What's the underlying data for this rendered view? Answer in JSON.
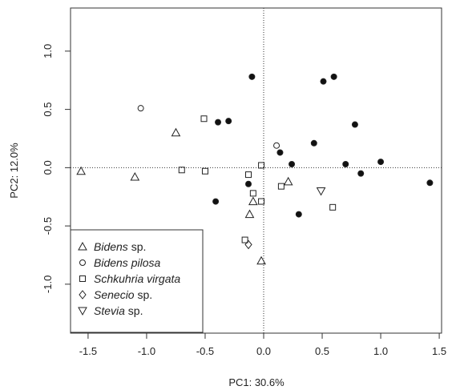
{
  "chart_data": {
    "type": "scatter",
    "xlabel": "PC1: 30.6%",
    "ylabel": "PC2: 12.0%",
    "xlim": [
      -1.65,
      1.52
    ],
    "ylim": [
      -1.42,
      1.37
    ],
    "xticks": [
      -1.5,
      -1.0,
      -0.5,
      0.0,
      0.5,
      1.0,
      1.5
    ],
    "xtick_labels": [
      "-1.5",
      "-1.0",
      "-0.5",
      "0.0",
      "0.5",
      "1.0",
      "1.5"
    ],
    "yticks": [
      -1.0,
      -0.5,
      0.0,
      0.5,
      1.0
    ],
    "ytick_labels": [
      "-1.0",
      "-0.5",
      "0.0",
      "0.5",
      "1.0"
    ],
    "reference_lines": {
      "x": 0,
      "y": 0,
      "style": "dotted"
    },
    "legend": {
      "position": "bottom-left",
      "entries": [
        {
          "italic": "Bidens",
          "rest": " sp.",
          "marker": "triangle-up"
        },
        {
          "italic": "Bidens pilosa",
          "rest": "",
          "marker": "circle-open"
        },
        {
          "italic": "Schkuhria virgata",
          "rest": "",
          "marker": "square-open"
        },
        {
          "italic": "Senecio",
          "rest": " sp.",
          "marker": "diamond-open"
        },
        {
          "italic": "Stevia",
          "rest": " sp.",
          "marker": "triangle-down"
        }
      ]
    },
    "series": [
      {
        "marker": "triangle-up",
        "points": [
          [
            -1.56,
            -0.03
          ],
          [
            -1.1,
            -0.08
          ],
          [
            -0.75,
            0.3
          ],
          [
            -0.12,
            -0.4
          ],
          [
            -0.09,
            -0.29
          ],
          [
            0.21,
            -0.12
          ],
          [
            -0.02,
            -0.8
          ]
        ]
      },
      {
        "marker": "circle-open",
        "points": [
          [
            -1.05,
            0.51
          ],
          [
            0.11,
            0.19
          ]
        ]
      },
      {
        "marker": "square-open",
        "points": [
          [
            -0.51,
            0.42
          ],
          [
            -0.7,
            -0.02
          ],
          [
            -0.5,
            -0.03
          ],
          [
            -0.13,
            -0.06
          ],
          [
            -0.09,
            -0.22
          ],
          [
            -0.02,
            0.02
          ],
          [
            -0.02,
            -0.29
          ],
          [
            0.15,
            -0.16
          ],
          [
            0.59,
            -0.34
          ],
          [
            -0.16,
            -0.62
          ]
        ]
      },
      {
        "marker": "diamond-open",
        "points": [
          [
            -0.13,
            -0.66
          ]
        ]
      },
      {
        "marker": "triangle-down",
        "points": [
          [
            0.49,
            -0.2
          ]
        ]
      },
      {
        "marker": "circle-filled",
        "points": [
          [
            -0.1,
            0.78
          ],
          [
            0.51,
            0.74
          ],
          [
            0.6,
            0.78
          ],
          [
            -0.39,
            0.39
          ],
          [
            -0.3,
            0.4
          ],
          [
            0.78,
            0.37
          ],
          [
            0.14,
            0.13
          ],
          [
            0.43,
            0.21
          ],
          [
            0.24,
            0.03
          ],
          [
            0.7,
            0.03
          ],
          [
            1.0,
            0.05
          ],
          [
            0.83,
            -0.05
          ],
          [
            1.42,
            -0.13
          ],
          [
            -0.13,
            -0.14
          ],
          [
            -0.41,
            -0.29
          ],
          [
            0.3,
            -0.4
          ]
        ]
      }
    ]
  }
}
